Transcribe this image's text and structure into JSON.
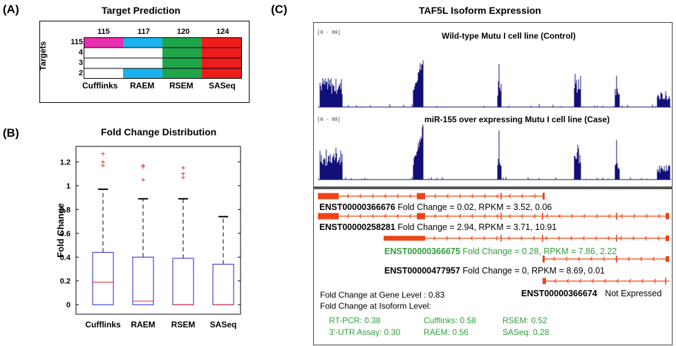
{
  "panelA": {
    "label": "(A)",
    "title": "Target Prediction",
    "col_values": [
      "115",
      "117",
      "120",
      "124"
    ],
    "row_values": [
      "115",
      "4",
      "3",
      "2"
    ],
    "ylabel": "Targets",
    "methods": [
      "Cufflinks",
      "RAEM",
      "RSEM",
      "SASeq"
    ],
    "colors": {
      "cufflinks": "#e62eaf",
      "raem": "#1ab2ee",
      "rsem": "#1fa64a",
      "saseq": "#ee1c1c"
    }
  },
  "panelB": {
    "label": "(B)",
    "title": "Fold Change Distribution"
  },
  "chart_data": {
    "type": "box",
    "title": "Fold Change Distribution",
    "xlabel": "",
    "ylabel": "Fold Change",
    "categories": [
      "Cufflinks",
      "RAEM",
      "RSEM",
      "SASeq"
    ],
    "yticks": [
      "0",
      "0.2",
      "0.4",
      "0.6",
      "0.8",
      "1",
      "1.2"
    ],
    "ylim": [
      -0.08,
      1.33
    ],
    "boxes": [
      {
        "q1": 0.0,
        "median": 0.19,
        "q3": 0.44,
        "whisker_low": 0.0,
        "whisker_high": 0.97,
        "outliers": [
          1.17,
          1.2,
          1.27
        ]
      },
      {
        "q1": 0.0,
        "median": 0.03,
        "q3": 0.4,
        "whisker_low": 0.0,
        "whisker_high": 0.89,
        "outliers": [
          1.05,
          1.16,
          1.17
        ]
      },
      {
        "q1": 0.0,
        "median": 0.0,
        "q3": 0.39,
        "whisker_low": 0.0,
        "whisker_high": 0.89,
        "outliers": [
          1.07,
          1.1,
          1.15
        ]
      },
      {
        "q1": 0.0,
        "median": 0.0,
        "q3": 0.34,
        "whisker_low": 0.0,
        "whisker_high": 0.74,
        "outliers": []
      }
    ],
    "colors": {
      "box": "#2020d0",
      "median": "#ee2020",
      "whisker": "#000000",
      "outlier": "#ee2020"
    }
  },
  "panelC": {
    "label": "(C)",
    "title": "TAF5L Isoform Expression",
    "tracks": [
      {
        "range": "[0 - 80]",
        "title": "Wild-type Mutu I cell line (Control)"
      },
      {
        "range": "[0 - 80]",
        "title": "miR-155 over expressing Mutu I cell line (Case)"
      }
    ],
    "isoforms": [
      {
        "id": "ENST00000366676",
        "desc": "Fold Change = 0.02, RPKM = 3.52, 0.06"
      },
      {
        "id": "ENST00000258281",
        "desc": "Fold Change = 2.94, RPKM = 3.71, 10.91"
      },
      {
        "id": "ENST00000366675",
        "desc": "Fold Change = 0.28, RPKM = 7.86, 2.22"
      },
      {
        "id": "ENST00000477957",
        "desc": "Fold Change = 0, RPKM = 8.69, 0.01"
      },
      {
        "id": "ENST00000366674",
        "desc": "Not Expressed"
      }
    ],
    "gene_level": "Fold Change at Gene Level : 0.83",
    "isoform_level_label": "Fold Change at Isoform Level:",
    "isoform_level": [
      [
        "RT-PCR: 0.38",
        "Cufflinks: 0.58",
        "RSEM: 0.52"
      ],
      [
        "3'-UTR Assay: 0.30",
        "RAEM: 0.56",
        "SASeq: 0.28"
      ]
    ],
    "colors": {
      "coverage": "#101078",
      "transcript": "#ee4418",
      "green_text": "#2e9e3a"
    }
  }
}
